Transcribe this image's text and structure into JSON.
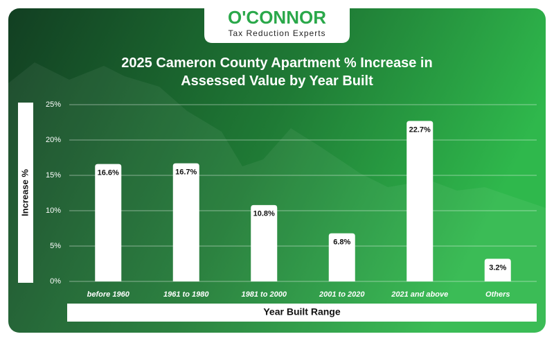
{
  "logo": {
    "name": "O'CONNOR",
    "tagline": "Tax Reduction Experts"
  },
  "chart_data": {
    "type": "bar",
    "title": "2025 Cameron County Apartment % Increase in Assessed Value by Year Built",
    "x_label": "Year Built Range",
    "y_label": "Increase %",
    "categories": [
      "before 1960",
      "1961 to 1980",
      "1981 to 2000",
      "2001 to 2020",
      "2021 and above",
      "Others"
    ],
    "values": [
      16.6,
      16.7,
      10.8,
      6.8,
      22.7,
      3.2
    ],
    "value_labels": [
      "16.6%",
      "16.7%",
      "10.8%",
      "6.8%",
      "22.7%",
      "3.2%"
    ],
    "color": "#ffffff",
    "ylim": [
      0,
      25
    ],
    "yticks": [
      {
        "value": 0,
        "label": "0%"
      },
      {
        "value": 5,
        "label": "5%"
      },
      {
        "value": 10,
        "label": "10%"
      },
      {
        "value": 15,
        "label": "15%"
      },
      {
        "value": 20,
        "label": "20%"
      },
      {
        "value": 25,
        "label": "25%"
      }
    ],
    "grid": true
  }
}
